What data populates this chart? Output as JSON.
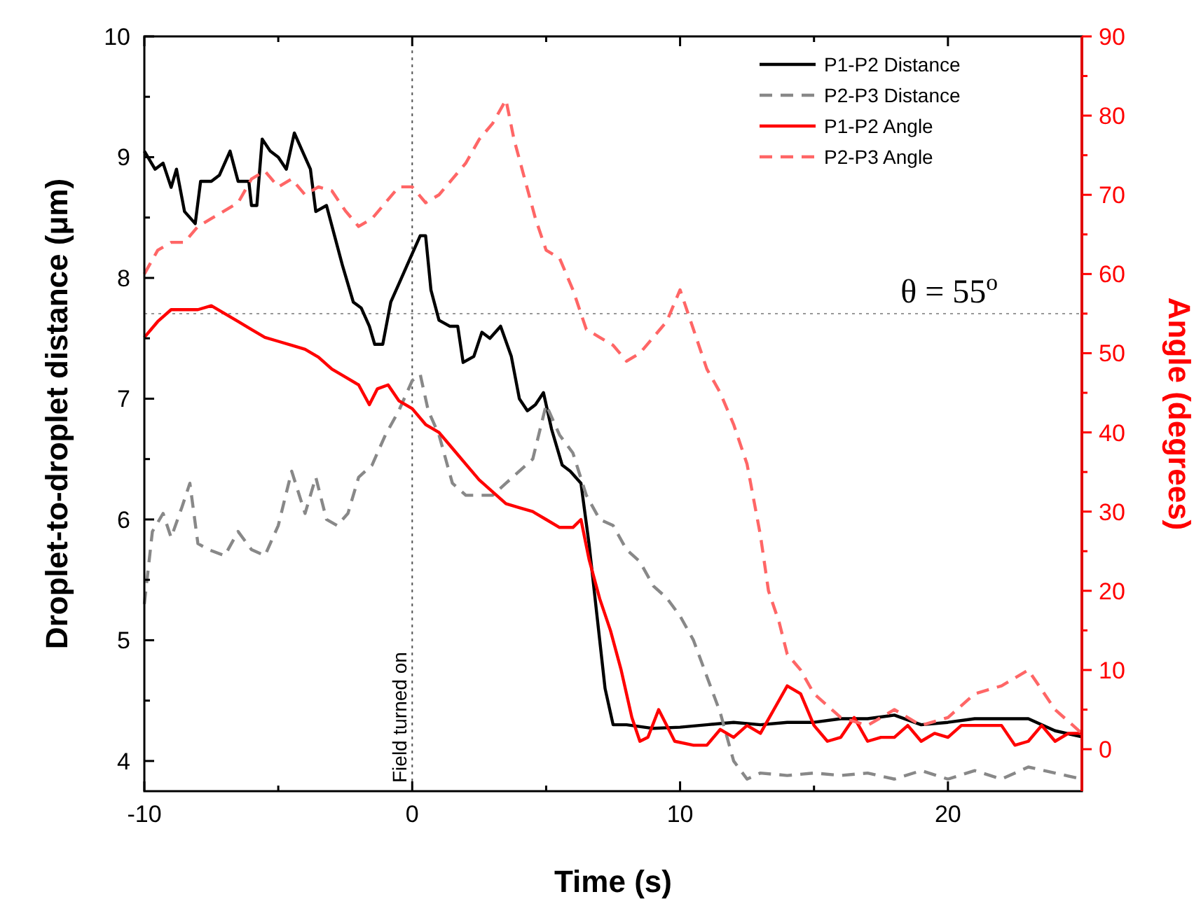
{
  "chart_data": {
    "type": "line",
    "xlabel": "Time (s)",
    "ylabel": "Droplet-to-droplet distance (μm)",
    "y2label": "Angle (degrees)",
    "xlim": [
      -10,
      25
    ],
    "xticks": [
      -10,
      {
        "value": -5,
        "label": null
      },
      0,
      {
        "value": 5,
        "label": null
      },
      10,
      {
        "value": 15,
        "label": null
      },
      20,
      {
        "value": 25,
        "label": null
      }
    ],
    "ylim": [
      3.75,
      10
    ],
    "yticks": [
      4,
      {
        "value": 4.5,
        "label": null
      },
      5,
      {
        "value": 5.5,
        "label": null
      },
      6,
      {
        "value": 6.5,
        "label": null
      },
      7,
      {
        "value": 7.5,
        "label": null
      },
      8,
      {
        "value": 8.5,
        "label": null
      },
      9,
      {
        "value": 9.5,
        "label": null
      },
      10
    ],
    "y2lim": [
      -5.3,
      90
    ],
    "y2ticks": [
      0,
      {
        "value": 5,
        "label": null
      },
      10,
      {
        "value": 15,
        "label": null
      },
      20,
      {
        "value": 25,
        "label": null
      },
      30,
      {
        "value": 35,
        "label": null
      },
      40,
      {
        "value": 45,
        "label": null
      },
      50,
      {
        "value": 55,
        "label": null
      },
      60,
      {
        "value": 65,
        "label": null
      },
      70,
      {
        "value": 75,
        "label": null
      },
      80,
      {
        "value": 85,
        "label": null
      },
      90
    ],
    "legend": "top right",
    "grid": false,
    "ref_lines": [
      {
        "axis": "x",
        "value": 0,
        "label": "Field turned on",
        "color": "#555555",
        "line_style": "dotted"
      },
      {
        "axis": "y2",
        "value": 55,
        "label": "θ = 55$^{o}$",
        "color": "#999999",
        "line_style": "dotted"
      }
    ],
    "series": [
      {
        "name": "P1-P2 Distance",
        "color": "#000000",
        "line_style": "solid",
        "x": [
          -10,
          -9.6,
          -9.3,
          -9,
          -8.8,
          -8.5,
          -8.1,
          -7.9,
          -7.5,
          -7.2,
          -6.8,
          -6.5,
          -6.1,
          -6,
          -5.8,
          -5.6,
          -5.3,
          -5,
          -4.7,
          -4.4,
          -4.1,
          -3.8,
          -3.6,
          -3.2,
          -2.9,
          -2.6,
          -2.2,
          -1.9,
          -1.6,
          -1.4,
          -1.1,
          -0.8,
          -0.5,
          -0.2,
          0.3,
          0.5,
          0.7,
          1,
          1.4,
          1.7,
          1.9,
          2.3,
          2.6,
          2.9,
          3.3,
          3.7,
          4,
          4.3,
          4.6,
          4.9,
          5.2,
          5.6,
          5.9,
          6.3,
          6.6,
          6.9,
          7.2,
          7.5,
          8,
          9,
          10,
          11,
          12,
          13,
          14,
          15,
          16,
          17,
          18,
          19,
          20,
          21,
          22,
          23,
          24,
          25
        ],
        "values": [
          9.05,
          8.9,
          8.95,
          8.75,
          8.9,
          8.55,
          8.45,
          8.8,
          8.8,
          8.85,
          9.05,
          8.8,
          8.8,
          8.6,
          8.6,
          9.15,
          9.05,
          9,
          8.9,
          9.2,
          9.05,
          8.9,
          8.55,
          8.6,
          8.35,
          8.1,
          7.8,
          7.75,
          7.6,
          7.45,
          7.45,
          7.8,
          7.95,
          8.1,
          8.35,
          8.35,
          7.9,
          7.65,
          7.6,
          7.6,
          7.3,
          7.35,
          7.55,
          7.5,
          7.6,
          7.35,
          7,
          6.9,
          6.95,
          7.05,
          6.75,
          6.45,
          6.4,
          6.3,
          5.8,
          5.2,
          4.6,
          4.3,
          4.3,
          4.27,
          4.28,
          4.3,
          4.32,
          4.3,
          4.32,
          4.32,
          4.35,
          4.35,
          4.38,
          4.3,
          4.32,
          4.35,
          4.35,
          4.35,
          4.25,
          4.2
        ]
      },
      {
        "name": "P2-P3 Distance",
        "color": "#888888",
        "line_style": "dashed",
        "x": [
          -10,
          -9.7,
          -9.3,
          -9,
          -8.6,
          -8.3,
          -8,
          -7.6,
          -7,
          -6.5,
          -6,
          -5.5,
          -5,
          -4.5,
          -4,
          -3.6,
          -3.2,
          -2.8,
          -2.4,
          -2,
          -1.5,
          -1,
          -0.5,
          0,
          0.3,
          0.6,
          1,
          1.5,
          2,
          2.5,
          3,
          3.5,
          4,
          4.5,
          5,
          5.5,
          6,
          6.5,
          7,
          7.5,
          8,
          8.5,
          9,
          9.5,
          10,
          10.5,
          11,
          11.5,
          12,
          12.5,
          13,
          14,
          15,
          16,
          17,
          18,
          19,
          20,
          21,
          22,
          23,
          24,
          25
        ],
        "values": [
          5.3,
          5.9,
          6.05,
          5.85,
          6.1,
          6.3,
          5.8,
          5.75,
          5.7,
          5.9,
          5.75,
          5.7,
          5.95,
          6.4,
          6.05,
          6.35,
          6,
          5.95,
          6.05,
          6.35,
          6.45,
          6.7,
          6.9,
          7.15,
          7.2,
          6.9,
          6.7,
          6.3,
          6.2,
          6.2,
          6.2,
          6.3,
          6.4,
          6.5,
          6.95,
          6.7,
          6.55,
          6.2,
          6,
          5.95,
          5.75,
          5.65,
          5.45,
          5.35,
          5.2,
          5,
          4.7,
          4.4,
          4,
          3.85,
          3.9,
          3.88,
          3.9,
          3.88,
          3.9,
          3.85,
          3.92,
          3.85,
          3.92,
          3.85,
          3.95,
          3.9,
          3.85
        ]
      },
      {
        "name": "P1-P2 Angle",
        "color": "#ff0000",
        "line_style": "solid",
        "axis": "y2",
        "x": [
          -10,
          -9.5,
          -9,
          -8.5,
          -8,
          -7.5,
          -7,
          -6.5,
          -6,
          -5.5,
          -5,
          -4.5,
          -4,
          -3.5,
          -3,
          -2.5,
          -2,
          -1.6,
          -1.3,
          -0.9,
          -0.5,
          0,
          0.5,
          1,
          1.5,
          2,
          2.5,
          3,
          3.5,
          4,
          4.5,
          5,
          5.5,
          6,
          6.3,
          6.6,
          7,
          7.4,
          7.8,
          8.2,
          8.5,
          8.8,
          9.2,
          9.5,
          9.8,
          10.5,
          11,
          11.5,
          12,
          12.5,
          13,
          13.5,
          14,
          14.5,
          15,
          15.5,
          16,
          16.5,
          17,
          17.5,
          18,
          18.5,
          19,
          19.5,
          20,
          20.5,
          21,
          21.5,
          22,
          22.5,
          23,
          23.5,
          24,
          24.5,
          25
        ],
        "values": [
          52,
          54,
          55.5,
          55.5,
          55.5,
          56,
          55,
          54,
          53,
          52,
          51.5,
          51,
          50.5,
          49.5,
          48,
          47,
          46,
          43.5,
          45.5,
          46,
          44,
          43,
          41,
          40,
          38,
          36,
          34,
          32.5,
          31,
          30.5,
          30,
          29,
          28,
          28,
          29,
          24,
          19,
          15,
          10,
          4,
          1,
          1.5,
          5,
          3,
          1,
          0.5,
          0.5,
          2.5,
          1.5,
          3,
          2,
          5,
          8,
          7,
          3,
          1,
          1.5,
          4,
          1,
          1.5,
          1.5,
          3,
          1,
          2,
          1.5,
          3,
          3,
          3,
          3,
          0.5,
          1,
          3,
          1,
          2,
          2
        ]
      },
      {
        "name": "P2-P3 Angle",
        "color": "#ff6666",
        "line_style": "dashed",
        "axis": "y2",
        "x": [
          -10,
          -9.5,
          -9,
          -8.5,
          -8,
          -7.5,
          -7,
          -6.5,
          -6,
          -5.5,
          -5,
          -4.5,
          -4,
          -3.5,
          -3,
          -2.5,
          -2,
          -1.5,
          -1,
          -0.5,
          0,
          0.5,
          1,
          1.5,
          2,
          2.5,
          3,
          3.5,
          3.8,
          4.2,
          4.6,
          5,
          5.5,
          6,
          6.5,
          7,
          7.5,
          8,
          8.5,
          9,
          9.5,
          10,
          10.5,
          11,
          11.5,
          12,
          12.5,
          13,
          13.3,
          13.7,
          14,
          14.5,
          15,
          16,
          17,
          18,
          19,
          20,
          21,
          22,
          23,
          24,
          25
        ],
        "values": [
          60,
          63,
          64,
          64,
          66,
          67,
          68,
          69,
          72,
          73,
          71,
          72,
          70,
          71,
          70.5,
          68,
          66,
          67,
          69,
          71,
          71,
          69,
          70,
          72,
          74,
          77,
          79,
          82,
          77,
          72,
          67,
          63,
          62,
          58,
          53,
          52,
          51,
          49,
          50,
          52,
          54,
          58,
          53,
          48,
          45,
          41,
          36,
          27,
          20,
          16,
          12,
          10,
          7,
          4,
          3,
          5,
          3,
          4,
          7,
          8,
          10,
          5,
          2
        ]
      }
    ]
  }
}
